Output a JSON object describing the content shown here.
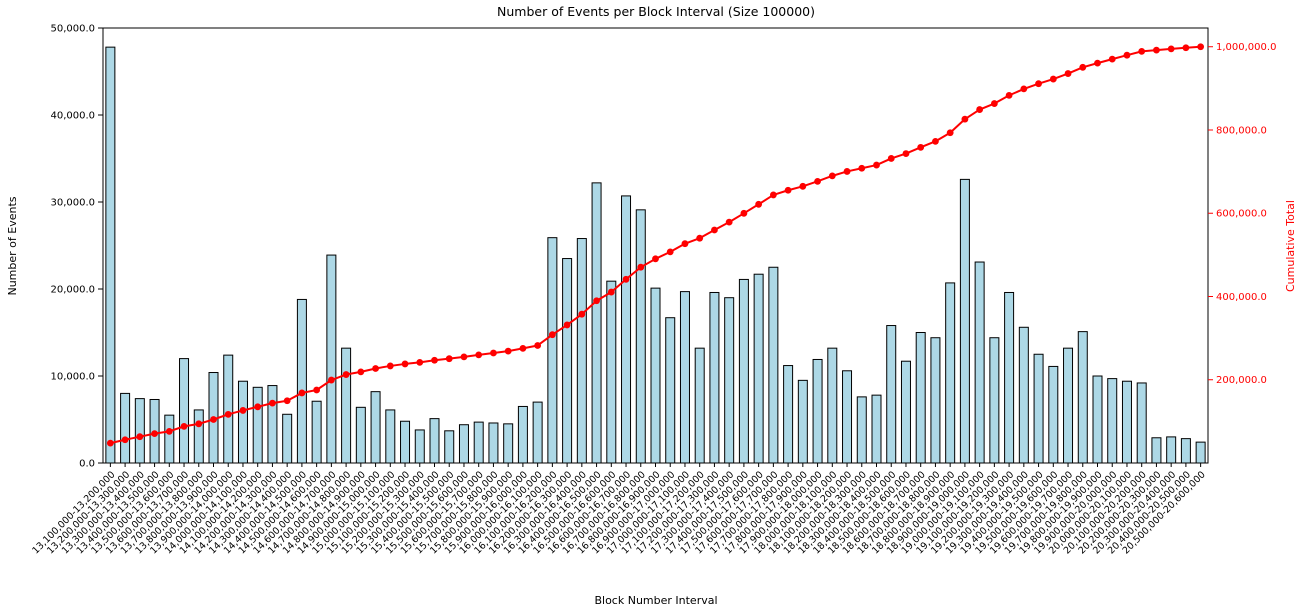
{
  "chart_data": {
    "type": "bar",
    "combo": "bar+cumulative-line",
    "title": "Number of Events per Block Interval (Size 100000)",
    "xlabel": "Block Number Interval",
    "ylabel_left": "Number of Events",
    "ylabel_right": "Cumulative Total",
    "grid": false,
    "legend": "none",
    "left_ylim": [
      0,
      50000
    ],
    "right_ylim": [
      0,
      1045000
    ],
    "left_ticks": {
      "values": [
        0,
        10000,
        20000,
        30000,
        40000,
        50000
      ],
      "labels": [
        "0.0",
        "10,000.0",
        "20,000.0",
        "30,000.0",
        "40,000.0",
        "50,000.0"
      ]
    },
    "right_ticks": {
      "values": [
        200000,
        400000,
        600000,
        800000,
        1000000
      ],
      "labels": [
        "200,000.0",
        "400,000.0",
        "600,000.0",
        "800,000.0",
        "1,000,000.0"
      ]
    },
    "colors": {
      "bar_fill": "#ADD8E6",
      "bar_edge": "#000000",
      "line": "#FF0000",
      "right_axis_text": "#FF0000",
      "left_axis_text": "#000000",
      "spine": "#000000"
    },
    "categories": [
      "13,100,000-13,200,000",
      "13,200,000-13,300,000",
      "13,300,000-13,400,000",
      "13,400,000-13,500,000",
      "13,500,000-13,600,000",
      "13,600,000-13,700,000",
      "13,700,000-13,800,000",
      "13,800,000-13,900,000",
      "13,900,000-14,000,000",
      "14,000,000-14,100,000",
      "14,100,000-14,200,000",
      "14,200,000-14,300,000",
      "14,300,000-14,400,000",
      "14,400,000-14,500,000",
      "14,500,000-14,600,000",
      "14,600,000-14,700,000",
      "14,700,000-14,800,000",
      "14,800,000-14,900,000",
      "14,900,000-15,000,000",
      "15,000,000-15,100,000",
      "15,100,000-15,200,000",
      "15,200,000-15,300,000",
      "15,300,000-15,400,000",
      "15,400,000-15,500,000",
      "15,500,000-15,600,000",
      "15,600,000-15,700,000",
      "15,700,000-15,800,000",
      "15,800,000-15,900,000",
      "15,900,000-16,000,000",
      "16,000,000-16,100,000",
      "16,100,000-16,200,000",
      "16,200,000-16,300,000",
      "16,300,000-16,400,000",
      "16,400,000-16,500,000",
      "16,500,000-16,600,000",
      "16,600,000-16,700,000",
      "16,700,000-16,800,000",
      "16,800,000-16,900,000",
      "16,900,000-17,000,000",
      "17,000,000-17,100,000",
      "17,100,000-17,200,000",
      "17,200,000-17,300,000",
      "17,300,000-17,400,000",
      "17,400,000-17,500,000",
      "17,500,000-17,600,000",
      "17,600,000-17,700,000",
      "17,700,000-17,800,000",
      "17,800,000-17,900,000",
      "17,900,000-18,000,000",
      "18,000,000-18,100,000",
      "18,100,000-18,200,000",
      "18,200,000-18,300,000",
      "18,300,000-18,400,000",
      "18,400,000-18,500,000",
      "18,500,000-18,600,000",
      "18,600,000-18,700,000",
      "18,700,000-18,800,000",
      "18,800,000-18,900,000",
      "18,900,000-19,000,000",
      "19,000,000-19,100,000",
      "19,100,000-19,200,000",
      "19,200,000-19,300,000",
      "19,300,000-19,400,000",
      "19,400,000-19,500,000",
      "19,500,000-19,600,000",
      "19,600,000-19,700,000",
      "19,700,000-19,800,000",
      "19,800,000-19,900,000",
      "19,900,000-20,000,000",
      "20,000,000-20,100,000",
      "20,100,000-20,200,000",
      "20,200,000-20,300,000",
      "20,300,000-20,400,000",
      "20,400,000-20,500,000",
      "20,500,000-20,600,000"
    ],
    "series": [
      {
        "name": "Number of Events",
        "type": "bar",
        "axis": "left",
        "values": [
          47800,
          8000,
          7400,
          7300,
          5500,
          12000,
          6100,
          10400,
          12400,
          9400,
          8700,
          8900,
          5600,
          18800,
          7100,
          23900,
          13200,
          6400,
          8200,
          6100,
          4800,
          3800,
          5100,
          3700,
          4400,
          4700,
          4600,
          4500,
          6500,
          7000,
          25900,
          23500,
          25800,
          32200,
          20900,
          30700,
          29100,
          20100,
          16700,
          19700,
          13200,
          19600,
          19000,
          21100,
          21700,
          22500,
          11200,
          9500,
          11900,
          13200,
          10600,
          7600,
          7800,
          15800,
          11700,
          15000,
          14400,
          20700,
          32600,
          23100,
          14400,
          19600,
          15600,
          12500,
          11100,
          13200,
          15100,
          10000,
          9700,
          9400,
          9200,
          2900,
          3000,
          2800,
          2400
        ]
      },
      {
        "name": "Cumulative Total",
        "type": "line",
        "axis": "right",
        "marker": "circle",
        "values": [
          47800,
          55800,
          63200,
          70500,
          76000,
          88000,
          94100,
          104500,
          116900,
          126300,
          135000,
          143900,
          149500,
          168300,
          175400,
          199300,
          212500,
          218900,
          227100,
          233200,
          238000,
          241800,
          246900,
          250600,
          255000,
          259700,
          264300,
          268800,
          275300,
          282300,
          308200,
          331700,
          357500,
          389700,
          410600,
          441300,
          470400,
          490500,
          507200,
          526900,
          540100,
          559700,
          578700,
          599800,
          621500,
          644000,
          655200,
          664700,
          676600,
          689800,
          700400,
          708000,
          715800,
          731600,
          743300,
          758300,
          772700,
          793400,
          826000,
          849100,
          863500,
          883100,
          898700,
          911200,
          922300,
          935500,
          950600,
          960600,
          970300,
          979700,
          988900,
          991800,
          994800,
          997600,
          1000000
        ]
      }
    ]
  }
}
